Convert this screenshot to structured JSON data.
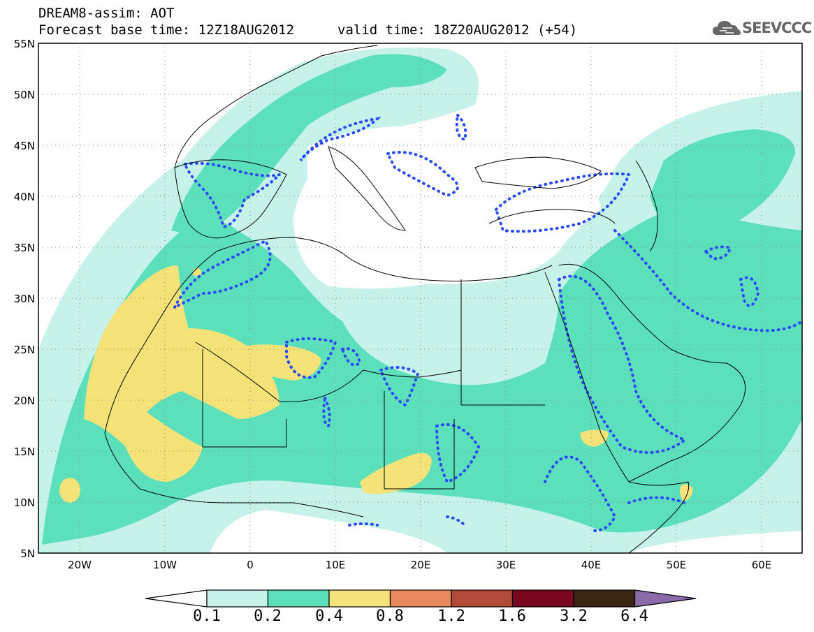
{
  "header": {
    "title": "DREAM8-assim: AOT",
    "base_time": "Forecast base time: 12Z18AUG2012",
    "valid_time": "valid time: 18Z20AUG2012 (+54)"
  },
  "logo": {
    "text": "SEEVCCC",
    "icon": "cloud-icon"
  },
  "map": {
    "lat_labels": [
      "55N",
      "50N",
      "45N",
      "40N",
      "35N",
      "30N",
      "25N",
      "20N",
      "15N",
      "10N",
      "5N"
    ],
    "lon_labels": [
      "20W",
      "10W",
      "0",
      "10E",
      "20E",
      "30E",
      "40E",
      "50E",
      "60E"
    ],
    "lon_range": [
      -25,
      65
    ],
    "lat_range": [
      5,
      55
    ],
    "grid": "dotted"
  },
  "colorbar": {
    "labels": [
      "0.1",
      "0.2",
      "0.4",
      "0.8",
      "1.2",
      "1.6",
      "3.2",
      "6.4"
    ],
    "colors": [
      "#ffffff",
      "#c6f2ea",
      "#5ce0bb",
      "#f5e37a",
      "#e88a5e",
      "#b24a3a",
      "#7a0620",
      "#3a2412",
      "#8a6aa8"
    ]
  },
  "colors": {
    "light": "#c6f2ea",
    "medium": "#5ce0bb",
    "high": "#f5e37a",
    "contour": "#2b4bf5",
    "border": "#000000"
  }
}
